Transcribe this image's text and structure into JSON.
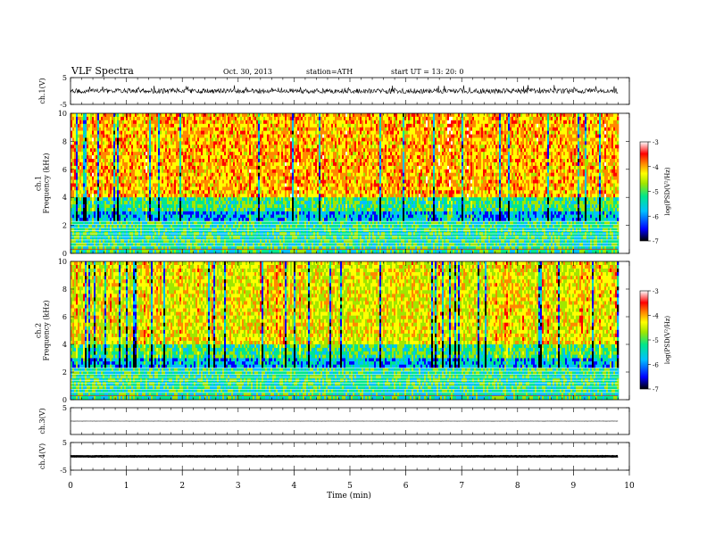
{
  "header": {
    "title": "VLF  Spectra",
    "date": "Oct. 30, 2013",
    "station": "station=ATH",
    "start": "start  UT  =   13: 20: 0"
  },
  "chart_data": [
    {
      "type": "line",
      "id": "ch1_waveform",
      "ylabel": "ch.1(V)",
      "ylim": [
        -5,
        5
      ],
      "yticks": [
        5,
        -5
      ],
      "xlim": [
        0,
        10
      ],
      "x_data_range": [
        0,
        9.8
      ],
      "baseline": 0,
      "noise_amplitude": 1.5
    },
    {
      "type": "heatmap",
      "id": "ch1_spectrogram",
      "ylabel": "ch.1\nFrequency  (kHz)",
      "ylim": [
        0,
        10
      ],
      "yticks": [
        0,
        2,
        4,
        6,
        8,
        10
      ],
      "xlim": [
        0,
        10
      ],
      "x_data_range": [
        0,
        9.8
      ],
      "colorbar": {
        "label": "log(PSD(V²/Hz)",
        "range": [
          -7,
          -3
        ],
        "ticks": [
          -3,
          -4,
          -5,
          -6,
          -7
        ]
      },
      "bands": [
        {
          "freq": [
            4,
            10
          ],
          "log_psd": -4.2
        },
        {
          "freq": [
            3,
            4
          ],
          "log_psd": -5.4
        },
        {
          "freq": [
            2.3,
            3
          ],
          "log_psd": -6.0
        },
        {
          "freq": [
            0,
            2.3
          ],
          "log_psd": -5.5
        }
      ]
    },
    {
      "type": "heatmap",
      "id": "ch2_spectrogram",
      "ylabel": "ch.2\nFrequency  (kHz)",
      "ylim": [
        0,
        10
      ],
      "yticks": [
        0,
        2,
        4,
        6,
        8,
        10
      ],
      "xlim": [
        0,
        10
      ],
      "x_data_range": [
        0,
        9.8
      ],
      "colorbar": {
        "label": "log(PSD(V²/Hz)",
        "range": [
          -7,
          -3
        ],
        "ticks": [
          -3,
          -4,
          -5,
          -6,
          -7
        ]
      },
      "bands": [
        {
          "freq": [
            4,
            10
          ],
          "log_psd": -4.6
        },
        {
          "freq": [
            3,
            4
          ],
          "log_psd": -5.4
        },
        {
          "freq": [
            2.3,
            3
          ],
          "log_psd": -6.0
        },
        {
          "freq": [
            0,
            2.3
          ],
          "log_psd": -5.5
        }
      ]
    },
    {
      "type": "line",
      "id": "ch3_waveform",
      "ylabel": "ch.3(V)",
      "ylim": [
        -5,
        5
      ],
      "yticks": [
        5
      ],
      "xlim": [
        0,
        10
      ],
      "x_data_range": [
        0,
        9.8
      ],
      "baseline": 0,
      "noise_amplitude": 0.05
    },
    {
      "type": "line",
      "id": "ch4_waveform",
      "ylabel": "ch.4(V)",
      "ylim": [
        -5,
        5
      ],
      "yticks": [
        5,
        -5
      ],
      "xlim": [
        0,
        10
      ],
      "x_data_range": [
        0,
        9.8
      ],
      "baseline": 0,
      "noise_amplitude": 0.1
    }
  ],
  "xaxis": {
    "label": "Time  (min)",
    "ticks": [
      0,
      1,
      2,
      3,
      4,
      5,
      6,
      7,
      8,
      9,
      10
    ]
  },
  "colors": {
    "waveform": "#000000",
    "colormap": [
      "#000000",
      "#0000ff",
      "#00c0ff",
      "#00e68c",
      "#a0e600",
      "#ffff00",
      "#ff8800",
      "#ff0000",
      "#ffffff"
    ]
  }
}
